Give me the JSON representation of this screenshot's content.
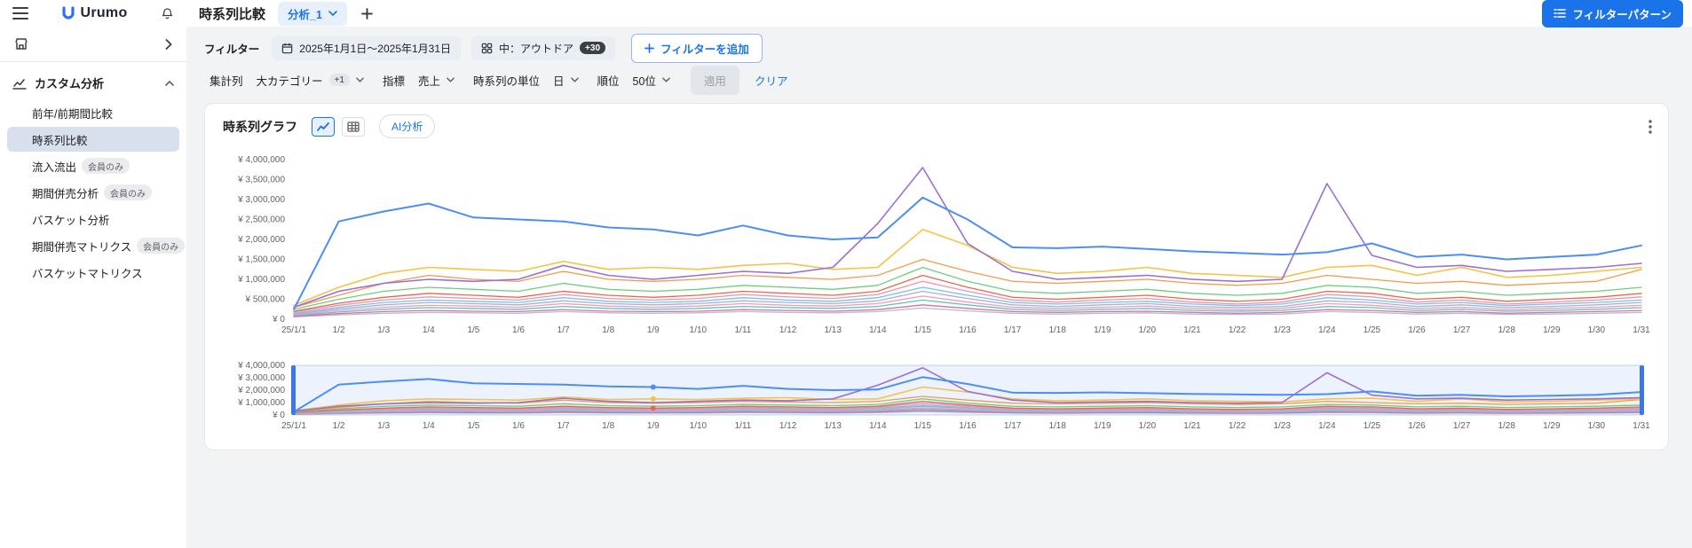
{
  "app": {
    "logo_text": "Urumo",
    "accent_color": "#1a73e8"
  },
  "header": {
    "title": "時系列比較",
    "tab": {
      "label": "分析_1"
    },
    "filter_pattern_button": "フィルターパターン"
  },
  "sidebar": {
    "section": {
      "label": "カスタム分析"
    },
    "items": [
      {
        "label": "前年/前期間比較",
        "selected": false
      },
      {
        "label": "時系列比較",
        "selected": true
      },
      {
        "label": "流入流出",
        "badge": "会員のみ",
        "selected": false
      },
      {
        "label": "期間併売分析",
        "badge": "会員のみ",
        "selected": false
      },
      {
        "label": "バスケット分析",
        "selected": false
      },
      {
        "label": "期間併売マトリクス",
        "badge": "会員のみ",
        "selected": false
      },
      {
        "label": "バスケットマトリクス",
        "selected": false
      }
    ]
  },
  "filters": {
    "label": "フィルター",
    "chips": [
      {
        "label": "2025年1月1日〜2025年1月31日",
        "icon": "calendar-icon"
      },
      {
        "label": "中：アウトドア",
        "icon": "category-icon",
        "badge": "+30"
      }
    ],
    "add_button": "フィルターを追加"
  },
  "controls": {
    "groups": [
      {
        "label": "集計列",
        "value": "大カテゴリー",
        "badge": "+1"
      },
      {
        "label": "指標",
        "value": "売上"
      },
      {
        "label": "時系列の単位",
        "value": "日"
      },
      {
        "label": "順位",
        "value": "50位"
      }
    ],
    "apply_button": "適用",
    "clear_button": "クリア"
  },
  "chart_card": {
    "title": "時系列グラフ",
    "ai_button": "AI分析"
  },
  "chart_data": {
    "type": "line",
    "title": "時系列グラフ",
    "grid": false,
    "legend": "none",
    "ylim": [
      0,
      4000000
    ],
    "x": [
      "25/1/1",
      "1/2",
      "1/3",
      "1/4",
      "1/5",
      "1/6",
      "1/7",
      "1/8",
      "1/9",
      "1/10",
      "1/11",
      "1/12",
      "1/13",
      "1/14",
      "1/15",
      "1/16",
      "1/17",
      "1/18",
      "1/19",
      "1/20",
      "1/21",
      "1/22",
      "1/23",
      "1/24",
      "1/25",
      "1/26",
      "1/27",
      "1/28",
      "1/29",
      "1/30",
      "1/31"
    ],
    "y_ticks_main": [
      "¥ 0",
      "¥ 500,000",
      "¥ 1,000,000",
      "¥ 1,500,000",
      "¥ 2,000,000",
      "¥ 2,500,000",
      "¥ 3,000,000",
      "¥ 3,500,000",
      "¥ 4,000,000"
    ],
    "y_ticks_nav": [
      "¥ 0",
      "¥ 1,000,000",
      "¥ 2,000,000",
      "¥ 3,000,000",
      "¥ 4,000,000"
    ],
    "navigator": {
      "selection_range": [
        0,
        30
      ]
    },
    "nav_markers": [
      {
        "series": 0,
        "x_index": 8
      },
      {
        "series": 2,
        "x_index": 8
      },
      {
        "series": 5,
        "x_index": 8
      }
    ],
    "series": [
      {
        "name": "series_01",
        "color": "#4e8df7",
        "width": 2,
        "values": [
          250000,
          2450000,
          2700000,
          2900000,
          2550000,
          2500000,
          2450000,
          2300000,
          2250000,
          2100000,
          2350000,
          2100000,
          2000000,
          2050000,
          3050000,
          2500000,
          1800000,
          1780000,
          1820000,
          1760000,
          1700000,
          1660000,
          1620000,
          1680000,
          1900000,
          1560000,
          1620000,
          1500000,
          1560000,
          1620000,
          1850000
        ]
      },
      {
        "name": "series_02",
        "color": "#9b6fd6",
        "width": 1.6,
        "values": [
          300000,
          700000,
          900000,
          1000000,
          950000,
          1000000,
          1350000,
          1100000,
          1000000,
          1100000,
          1200000,
          1150000,
          1300000,
          2400000,
          3800000,
          1900000,
          1200000,
          1000000,
          1050000,
          1100000,
          1000000,
          950000,
          1000000,
          3400000,
          1600000,
          1300000,
          1350000,
          1200000,
          1250000,
          1300000,
          1400000
        ]
      },
      {
        "name": "series_03",
        "color": "#f6c344",
        "width": 1.6,
        "values": [
          350000,
          800000,
          1150000,
          1300000,
          1250000,
          1200000,
          1450000,
          1250000,
          1300000,
          1250000,
          1350000,
          1400000,
          1250000,
          1300000,
          2250000,
          1850000,
          1300000,
          1150000,
          1200000,
          1300000,
          1150000,
          1100000,
          1050000,
          1300000,
          1350000,
          1100000,
          1300000,
          1050000,
          1100000,
          1200000,
          1300000
        ]
      },
      {
        "name": "series_04",
        "color": "#f59a4b",
        "width": 1.3,
        "values": [
          300000,
          600000,
          900000,
          1100000,
          1000000,
          950000,
          1200000,
          1000000,
          950000,
          1000000,
          1100000,
          1050000,
          1000000,
          1100000,
          1500000,
          1200000,
          950000,
          900000,
          950000,
          1000000,
          900000,
          850000,
          900000,
          1100000,
          1000000,
          900000,
          950000,
          850000,
          900000,
          950000,
          1250000
        ]
      },
      {
        "name": "series_05",
        "color": "#6fce7e",
        "width": 1.3,
        "values": [
          250000,
          500000,
          700000,
          800000,
          750000,
          700000,
          900000,
          750000,
          700000,
          750000,
          850000,
          800000,
          750000,
          850000,
          1300000,
          950000,
          700000,
          650000,
          700000,
          750000,
          650000,
          600000,
          650000,
          850000,
          800000,
          650000,
          700000,
          600000,
          650000,
          700000,
          800000
        ]
      },
      {
        "name": "series_06",
        "color": "#e8684a",
        "width": 1.3,
        "values": [
          200000,
          400000,
          550000,
          650000,
          600000,
          550000,
          700000,
          600000,
          550000,
          600000,
          700000,
          650000,
          600000,
          700000,
          1100000,
          800000,
          550000,
          500000,
          550000,
          600000,
          500000,
          450000,
          500000,
          700000,
          650000,
          500000,
          550000,
          450000,
          500000,
          550000,
          650000
        ]
      },
      {
        "name": "series_07",
        "color": "#f48fb1",
        "width": 1.3,
        "values": [
          180000,
          350000,
          480000,
          560000,
          520000,
          480000,
          620000,
          520000,
          480000,
          520000,
          620000,
          560000,
          520000,
          620000,
          950000,
          700000,
          480000,
          430000,
          480000,
          520000,
          430000,
          380000,
          430000,
          620000,
          560000,
          430000,
          480000,
          380000,
          430000,
          480000,
          560000
        ]
      },
      {
        "name": "series_08",
        "color": "#6ec6e8",
        "width": 1.3,
        "values": [
          150000,
          300000,
          420000,
          480000,
          450000,
          420000,
          540000,
          450000,
          420000,
          450000,
          540000,
          480000,
          450000,
          540000,
          800000,
          600000,
          420000,
          380000,
          420000,
          450000,
          380000,
          340000,
          380000,
          540000,
          480000,
          380000,
          420000,
          340000,
          380000,
          420000,
          480000
        ]
      },
      {
        "name": "series_09",
        "color": "#b3a6e3",
        "width": 1.3,
        "values": [
          130000,
          260000,
          360000,
          420000,
          390000,
          360000,
          460000,
          390000,
          360000,
          390000,
          460000,
          420000,
          390000,
          460000,
          700000,
          520000,
          360000,
          320000,
          360000,
          390000,
          320000,
          290000,
          320000,
          460000,
          420000,
          320000,
          360000,
          290000,
          320000,
          360000,
          420000
        ]
      },
      {
        "name": "series_10",
        "color": "#ef9fae",
        "width": 1.3,
        "values": [
          110000,
          220000,
          300000,
          350000,
          330000,
          300000,
          390000,
          330000,
          300000,
          330000,
          390000,
          350000,
          330000,
          390000,
          580000,
          430000,
          300000,
          270000,
          300000,
          330000,
          270000,
          240000,
          270000,
          390000,
          350000,
          270000,
          300000,
          240000,
          270000,
          300000,
          350000
        ]
      },
      {
        "name": "series_11",
        "color": "#5bc4bf",
        "width": 1.3,
        "values": [
          90000,
          180000,
          250000,
          290000,
          270000,
          250000,
          320000,
          270000,
          250000,
          270000,
          320000,
          290000,
          270000,
          320000,
          480000,
          360000,
          250000,
          220000,
          250000,
          270000,
          220000,
          200000,
          220000,
          320000,
          290000,
          220000,
          250000,
          200000,
          220000,
          250000,
          290000
        ]
      },
      {
        "name": "series_12",
        "color": "#d46fb0",
        "width": 1.3,
        "values": [
          70000,
          140000,
          190000,
          220000,
          200000,
          190000,
          240000,
          200000,
          190000,
          200000,
          240000,
          220000,
          200000,
          240000,
          360000,
          270000,
          190000,
          170000,
          190000,
          200000,
          170000,
          150000,
          170000,
          240000,
          220000,
          170000,
          190000,
          150000,
          170000,
          190000,
          220000
        ]
      },
      {
        "name": "series_13",
        "color": "#b8bdc7",
        "width": 1.3,
        "values": [
          60000,
          110000,
          150000,
          170000,
          160000,
          150000,
          190000,
          160000,
          150000,
          160000,
          190000,
          170000,
          160000,
          190000,
          280000,
          210000,
          150000,
          130000,
          150000,
          160000,
          130000,
          120000,
          130000,
          190000,
          170000,
          130000,
          150000,
          120000,
          130000,
          150000,
          170000
        ]
      }
    ]
  }
}
